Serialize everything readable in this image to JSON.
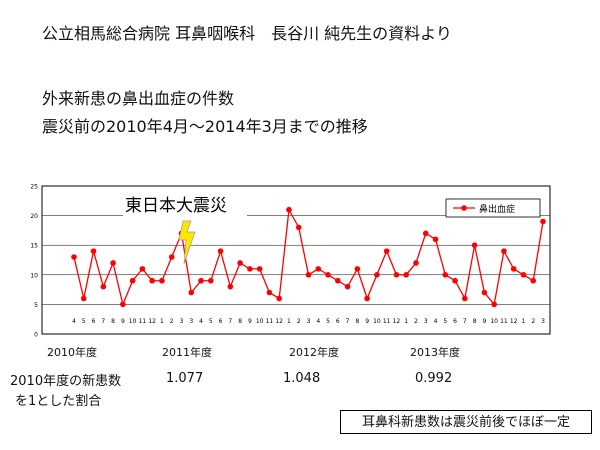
{
  "header": {
    "title": "公立相馬総合病院 耳鼻咽喉科　長谷川 純先生の資料より",
    "subtitle_1": "外来新患の鼻出血症の件数",
    "subtitle_2": "震災前の2010年4月～2014年3月までの推移"
  },
  "annotation": {
    "earthquake_label": "東日本大震災"
  },
  "fiscal_years": [
    "2010年度",
    "2011年度",
    "2012年度",
    "2013年度"
  ],
  "ratio": {
    "label_1": "2010年度の新患数",
    "label_2": "を1とした割合",
    "values": [
      "1.077",
      "1.048",
      "0.992"
    ]
  },
  "note": "耳鼻科新患数は震災前後でほぼ一定",
  "colors": {
    "series": "#ff0000",
    "lightning": "#ffe600",
    "grid": "#000000"
  },
  "chart_data": {
    "type": "line",
    "series": [
      {
        "name": "鼻出血症",
        "values": [
          13,
          6,
          14,
          8,
          12,
          5,
          9,
          11,
          9,
          9,
          13,
          17,
          7,
          9,
          9,
          14,
          8,
          12,
          11,
          11,
          7,
          6,
          21,
          18,
          10,
          11,
          10,
          9,
          8,
          11,
          6,
          10,
          14,
          10,
          10,
          12,
          17,
          16,
          10,
          9,
          6,
          15,
          7,
          5,
          14,
          11,
          10,
          9,
          19
        ]
      }
    ],
    "categories": [
      "4",
      "5",
      "6",
      "7",
      "8",
      "9",
      "10",
      "11",
      "12",
      "1",
      "2",
      "3",
      "3",
      "4",
      "5",
      "6",
      "7",
      "8",
      "9",
      "10",
      "11",
      "12",
      "1",
      "2",
      "3",
      "4",
      "5",
      "6",
      "7",
      "8",
      "9",
      "10",
      "11",
      "12",
      "1",
      "2",
      "3",
      "4",
      "5",
      "6",
      "7",
      "8",
      "9",
      "10",
      "11",
      "12",
      "1",
      "2",
      "3"
    ],
    "yticks": [
      "0",
      "5",
      "10",
      "15",
      "20",
      "25"
    ],
    "ylim": [
      0,
      25
    ],
    "grid": true,
    "legend_position": "top-right"
  }
}
